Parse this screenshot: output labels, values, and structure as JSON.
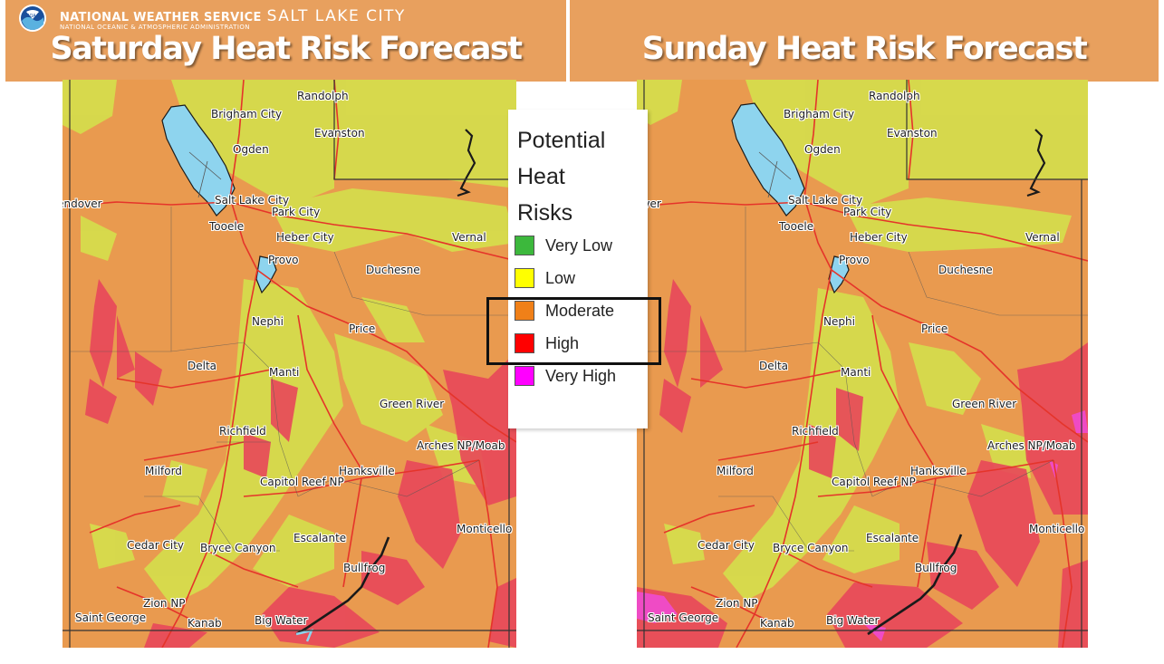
{
  "header": {
    "org_name": "NATIONAL WEATHER SERVICE",
    "office": "SALT LAKE CITY",
    "org_sub": "NATIONAL OCEANIC & ATMOSPHERIC ADMINISTRATION",
    "logo_text": "NOAA"
  },
  "panels": [
    {
      "title": "Saturday Heat Risk Forecast"
    },
    {
      "title": "Sunday Heat Risk Forecast"
    }
  ],
  "cities": {
    "randolph": "Randolph",
    "brigham_city": "Brigham City",
    "evanston": "Evanston",
    "ogden": "Ogden",
    "wendover": "Wendover",
    "wendover_cut": "over",
    "salt_lake_city": "Salt Lake City",
    "park_city": "Park City",
    "tooele": "Tooele",
    "heber_city": "Heber City",
    "vernal": "Vernal",
    "provo": "Provo",
    "duchesne": "Duchesne",
    "nephi": "Nephi",
    "price": "Price",
    "delta": "Delta",
    "manti": "Manti",
    "green_river": "Green River",
    "richfield": "Richfield",
    "arches_moab": "Arches NP/Moab",
    "milford": "Milford",
    "hanksville": "Hanksville",
    "capitol_reef": "Capitol Reef NP",
    "escalante": "Escalante",
    "monticello": "Monticello",
    "cedar_city": "Cedar City",
    "bryce_canyon": "Bryce Canyon",
    "bullfrog": "Bullfrog",
    "zion": "Zion NP",
    "saint_george": "Saint George",
    "kanab": "Kanab",
    "big_water": "Big Water"
  },
  "legend": {
    "title_lines": [
      "Potential",
      "Heat",
      "Risks"
    ],
    "items": [
      {
        "label": "Very Low",
        "color": "#3cb83c"
      },
      {
        "label": "Low",
        "color": "#ffff00"
      },
      {
        "label": "Moderate",
        "color": "#f08018"
      },
      {
        "label": "High",
        "color": "#ff0000"
      },
      {
        "label": "Very High",
        "color": "#ff00ff"
      }
    ],
    "highlighted": [
      "Moderate",
      "High"
    ]
  },
  "map_colors": {
    "moderate": "#e99a4f",
    "low": "#d6dc4c",
    "high": "#e8475a",
    "very_high": "#f04ad0",
    "water": "#8ed4ee",
    "roads": "#e5342a"
  }
}
